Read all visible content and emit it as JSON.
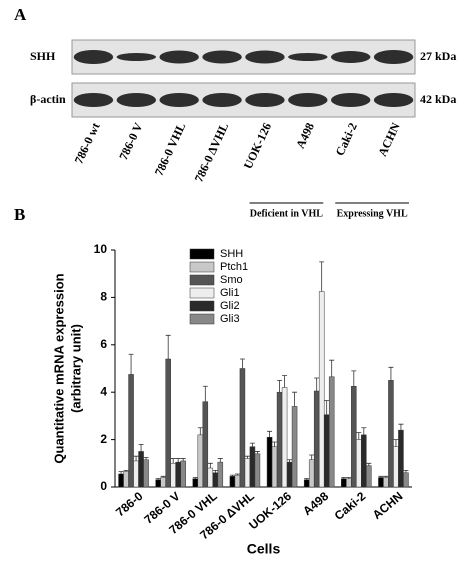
{
  "blot": {
    "panel_label": "A",
    "rows": [
      {
        "label": "SHH",
        "size": "27 kDa"
      },
      {
        "label": "β-actin",
        "size": "42 kDa"
      }
    ],
    "lanes": [
      "786-0 wt",
      "786-0 V",
      "786-0 VHL",
      "786-0 ΔVHL",
      "UOK-126",
      "A498",
      "Caki-2",
      "ACHN"
    ],
    "groups": [
      "Deficient in VHL",
      "Expressing VHL"
    ]
  },
  "chart_data": {
    "type": "bar",
    "panel_label": "B",
    "xlabel": "Cells",
    "ylabel": [
      "Quantitative mRNA expression",
      "(arbitrary unit)"
    ],
    "categories": [
      "786-0",
      "786-0 V",
      "786-0 VHL",
      "786-0 ΔVHL",
      "UOK-126",
      "A498",
      "Caki-2",
      "ACHN"
    ],
    "ylim": [
      0,
      10
    ],
    "yticks": [
      0,
      2,
      4,
      6,
      8,
      10
    ],
    "series": [
      {
        "name": "SHH",
        "color": "#000000",
        "values": [
          0.55,
          0.3,
          0.35,
          0.45,
          2.1,
          0.3,
          0.35,
          0.4
        ],
        "errors": [
          0.1,
          0.05,
          0.05,
          0.05,
          0.25,
          0.05,
          0.05,
          0.05
        ]
      },
      {
        "name": "Ptch1",
        "color": "#c8c8c8",
        "values": [
          0.65,
          0.4,
          2.2,
          0.5,
          1.7,
          1.15,
          0.35,
          0.4
        ],
        "errors": [
          0.05,
          0.05,
          0.3,
          0.05,
          0.2,
          0.2,
          0.05,
          0.05
        ]
      },
      {
        "name": "Smo",
        "color": "#555555",
        "values": [
          4.75,
          5.4,
          3.6,
          5.0,
          4.0,
          4.05,
          4.25,
          4.5
        ],
        "errors": [
          0.85,
          1.0,
          0.65,
          0.4,
          0.5,
          0.55,
          0.65,
          0.55
        ]
      },
      {
        "name": "Gli1",
        "color": "#eeeeee",
        "values": [
          1.1,
          1.0,
          0.8,
          1.2,
          4.2,
          8.25,
          2.0,
          1.7
        ],
        "errors": [
          0.2,
          0.2,
          0.2,
          0.1,
          0.5,
          1.25,
          0.3,
          0.3
        ]
      },
      {
        "name": "Gli2",
        "color": "#2a2a2a",
        "values": [
          1.5,
          1.05,
          0.6,
          1.7,
          1.05,
          3.05,
          2.2,
          2.4
        ],
        "errors": [
          0.3,
          0.15,
          0.1,
          0.15,
          0.1,
          0.6,
          0.3,
          0.25
        ]
      },
      {
        "name": "Gli3",
        "color": "#888888",
        "values": [
          1.15,
          1.1,
          1.05,
          1.4,
          3.4,
          4.65,
          0.9,
          0.6
        ],
        "errors": [
          0.1,
          0.1,
          0.15,
          0.1,
          0.6,
          0.7,
          0.1,
          0.1
        ]
      }
    ]
  }
}
